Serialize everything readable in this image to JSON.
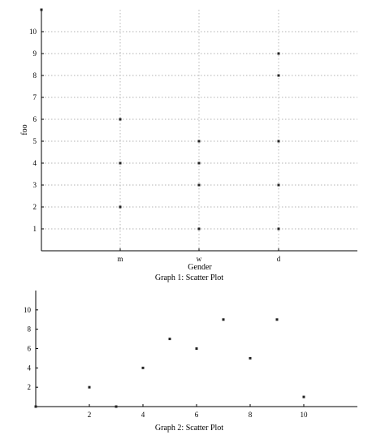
{
  "chart_data": [
    {
      "type": "scatter",
      "caption": "Graph 1: Scatter Plot",
      "xlabel": "Gender",
      "ylabel": "foo",
      "categories": [
        "m",
        "w",
        "d"
      ],
      "yticks": [
        1,
        2,
        3,
        4,
        5,
        6,
        7,
        8,
        9,
        10
      ],
      "ylim": [
        0,
        11
      ],
      "grid": true,
      "points": [
        {
          "x": "m",
          "y": 2
        },
        {
          "x": "m",
          "y": 4
        },
        {
          "x": "m",
          "y": 6
        },
        {
          "x": "w",
          "y": 1
        },
        {
          "x": "w",
          "y": 3
        },
        {
          "x": "w",
          "y": 4
        },
        {
          "x": "w",
          "y": 5
        },
        {
          "x": "d",
          "y": 1
        },
        {
          "x": "d",
          "y": 3
        },
        {
          "x": "d",
          "y": 5
        },
        {
          "x": "d",
          "y": 8
        },
        {
          "x": "d",
          "y": 9
        }
      ]
    },
    {
      "type": "scatter",
      "caption": "Graph 2: Scatter Plot",
      "xlabel": "",
      "ylabel": "",
      "xticks": [
        2,
        4,
        6,
        8,
        10
      ],
      "yticks": [
        2,
        4,
        6,
        8,
        10
      ],
      "xlim": [
        0,
        12
      ],
      "ylim": [
        0,
        12
      ],
      "grid": false,
      "points": [
        {
          "x": 0,
          "y": 0
        },
        {
          "x": 2,
          "y": 2
        },
        {
          "x": 3,
          "y": 0
        },
        {
          "x": 4,
          "y": 4
        },
        {
          "x": 5,
          "y": 7
        },
        {
          "x": 6,
          "y": 6
        },
        {
          "x": 7,
          "y": 9
        },
        {
          "x": 8,
          "y": 5
        },
        {
          "x": 9,
          "y": 9
        },
        {
          "x": 10,
          "y": 1
        }
      ]
    }
  ]
}
